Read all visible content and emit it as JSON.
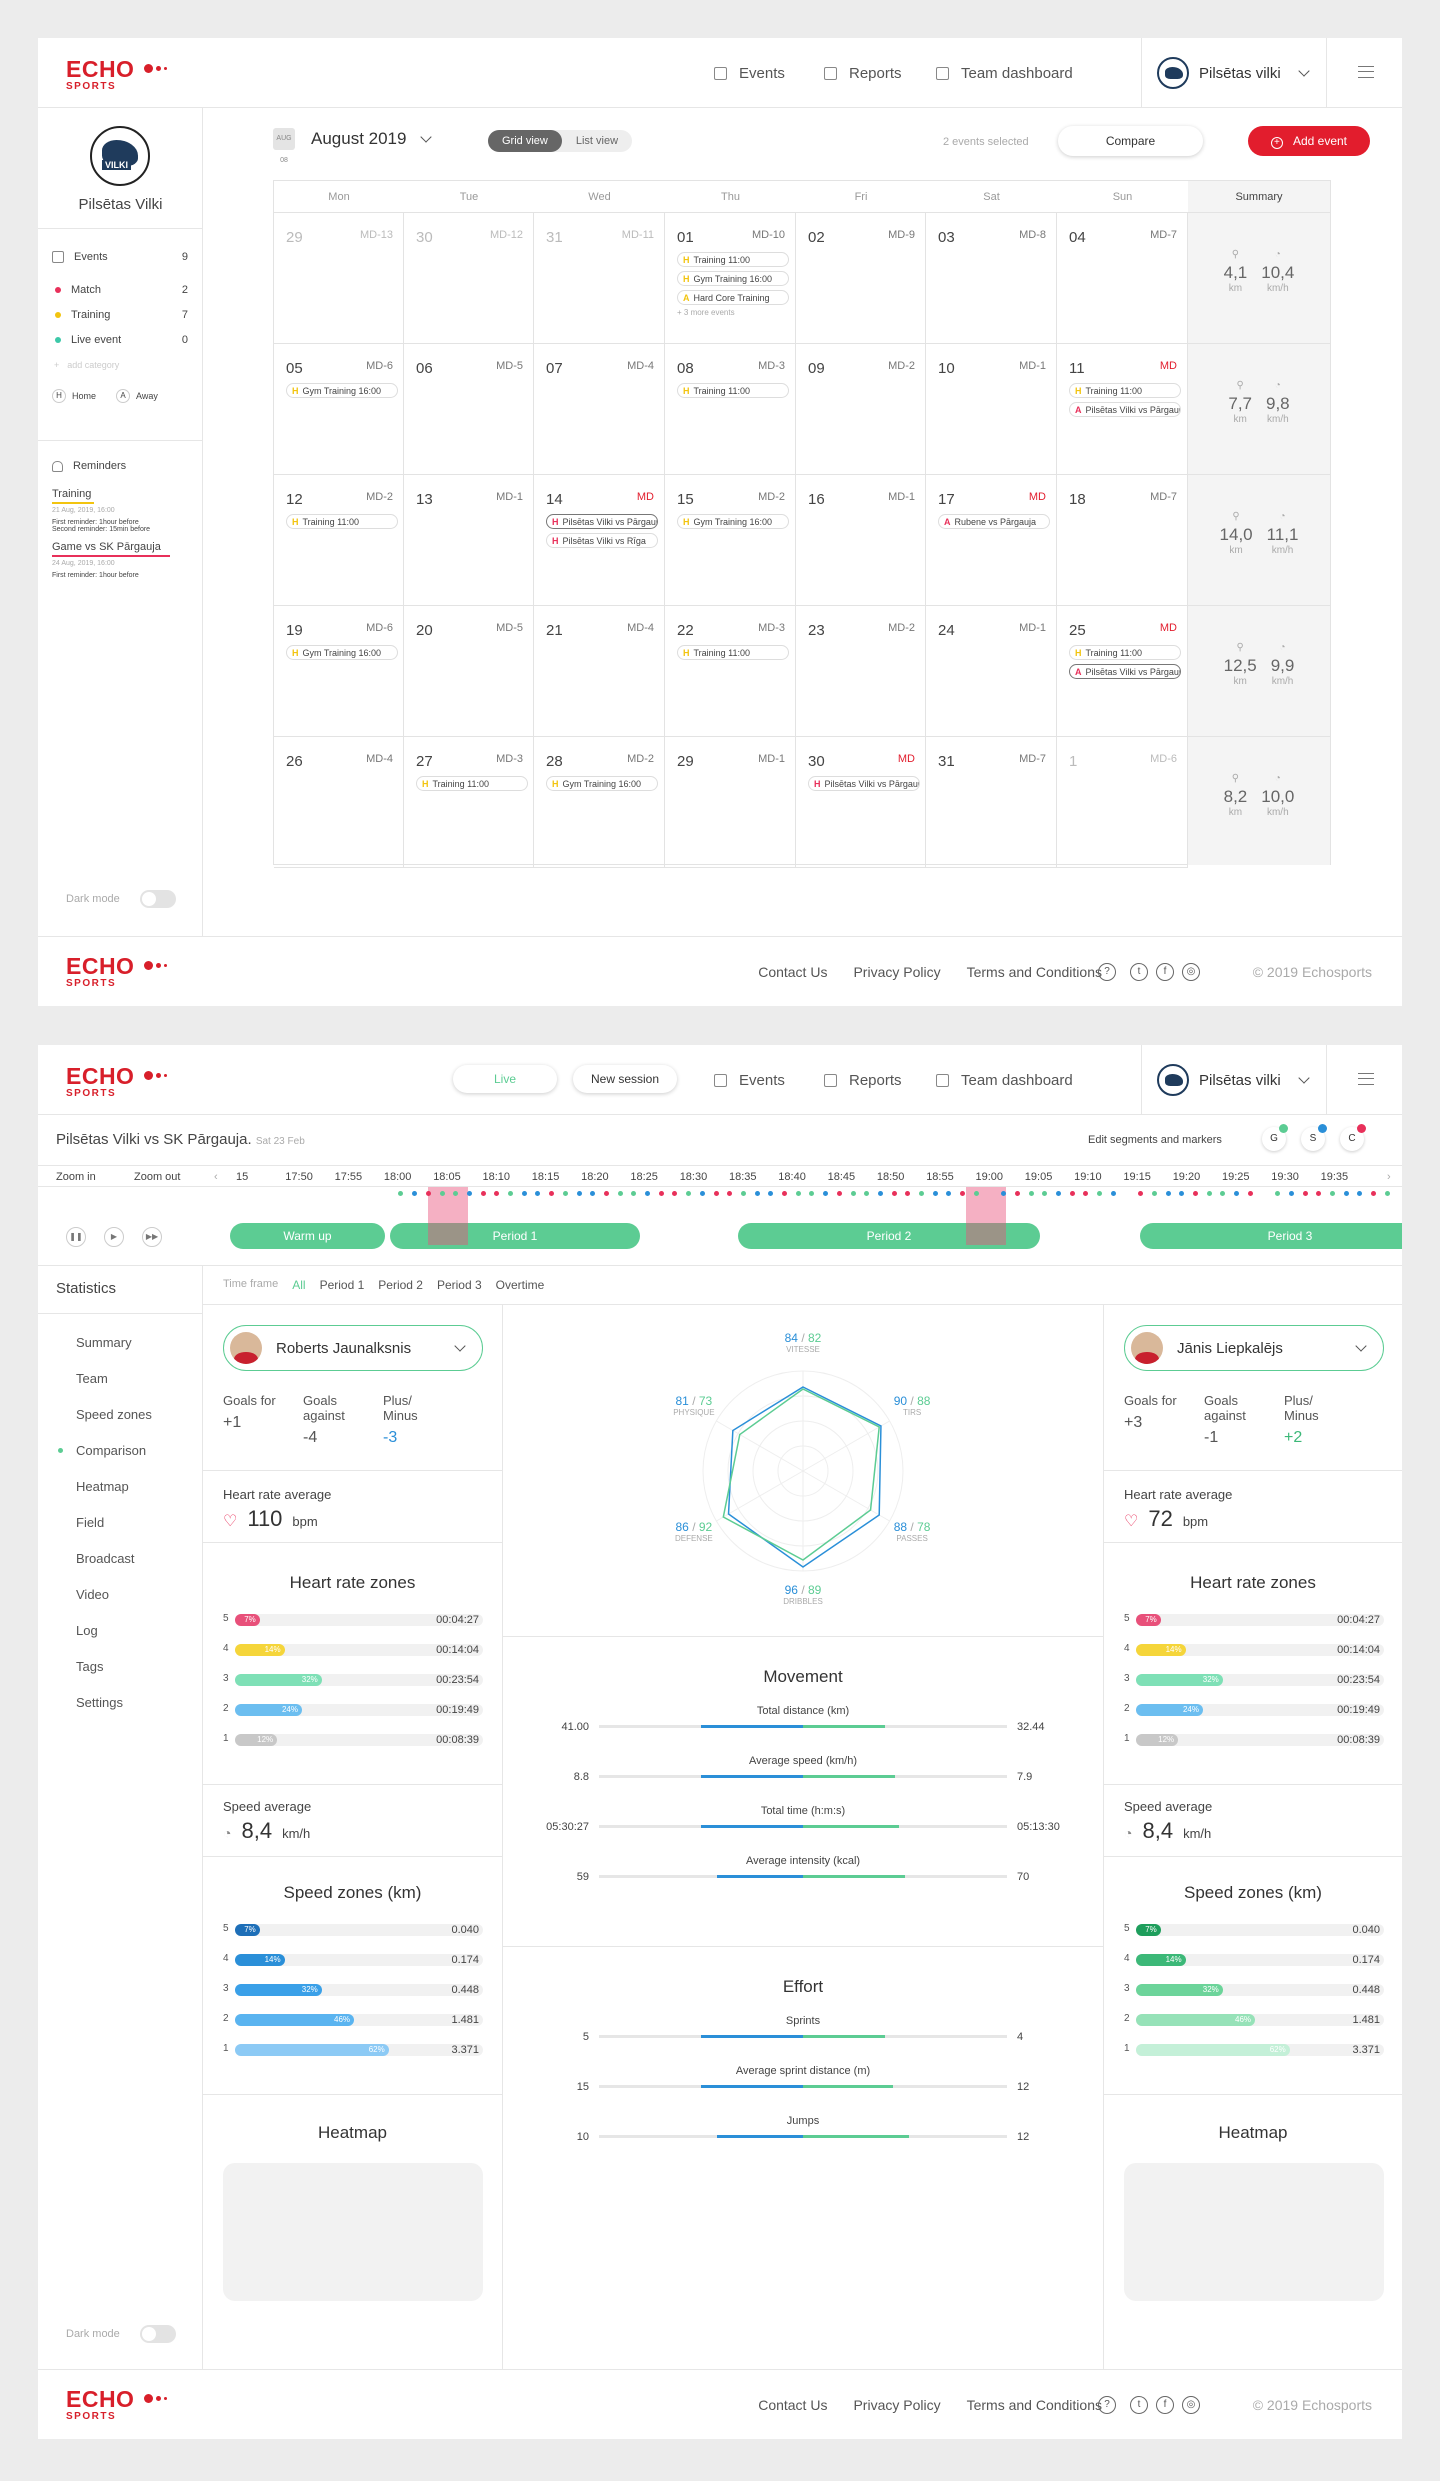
{
  "brand": {
    "logo_top": "ECHO",
    "logo_bottom": "SPORTS",
    "red": "#d81f2a",
    "green": "#5ccc93",
    "blue": "#2a8fd8"
  },
  "header": {
    "nav": [
      {
        "label": "Events",
        "icon": "calendar-icon"
      },
      {
        "label": "Reports",
        "icon": "report-icon"
      },
      {
        "label": "Team dashboard",
        "icon": "dashboard-icon"
      }
    ],
    "team": "Pilsētas vilki",
    "session_buttons": [
      "Live",
      "New session"
    ]
  },
  "footer": {
    "links": [
      "Contact Us",
      "Privacy Policy",
      "Terms and Conditions"
    ],
    "copyright": "© 2019 Echosports"
  },
  "dark_mode": "Dark mode",
  "sidebar": {
    "team": "Pilsētas Vilki",
    "events": {
      "label": "Events",
      "count": "9"
    },
    "categories": [
      {
        "label": "Match",
        "count": "2",
        "color": "#e8305a"
      },
      {
        "label": "Training",
        "count": "7",
        "color": "#f2c40f"
      },
      {
        "label": "Live event",
        "count": "0",
        "color": "#3cc8a8"
      }
    ],
    "add_category": "add category",
    "home": "Home",
    "away": "Away",
    "reminders_title": "Reminders",
    "reminders": [
      {
        "title": "Training",
        "date": "21 Aug, 2019, 16:00",
        "lines": [
          "First reminder: 1hour before",
          "Second reminder: 15min before"
        ],
        "color": "#f2c40f"
      },
      {
        "title": "Game vs SK Pārgauja",
        "date": "24 Aug, 2019, 16:00",
        "lines": [
          "First reminder: 1hour before"
        ],
        "color": "#e8305a"
      }
    ]
  },
  "calendar": {
    "month": "August 2019",
    "icon_text": "AUG 08",
    "views": [
      "Grid view",
      "List view"
    ],
    "selected_text": "2 events selected",
    "compare": "Compare",
    "add_event": "Add event",
    "days": [
      "Mon",
      "Tue",
      "Wed",
      "Thu",
      "Fri",
      "Sat",
      "Sun"
    ],
    "summary": "Summary",
    "weeks": [
      [
        {
          "d": "29",
          "md": "MD-13",
          "m": 1
        },
        {
          "d": "30",
          "md": "MD-12",
          "m": 1
        },
        {
          "d": "31",
          "md": "MD-11",
          "m": 1
        },
        {
          "d": "01",
          "md": "MD-10",
          "ev": [
            [
              "H",
              "Training 11:00",
              "#f2c40f"
            ],
            [
              "H",
              "Gym Training 16:00",
              "#f2c40f"
            ],
            [
              "A",
              "Hard Core Training",
              "#f2c40f"
            ]
          ],
          "more": "+ 3 more events"
        },
        {
          "d": "02",
          "md": "MD-9"
        },
        {
          "d": "03",
          "md": "MD-8"
        },
        {
          "d": "04",
          "md": "MD-7"
        }
      ],
      [
        {
          "d": "05",
          "md": "MD-6",
          "ev": [
            [
              "H",
              "Gym Training 16:00",
              "#f2c40f"
            ]
          ]
        },
        {
          "d": "06",
          "md": "MD-5"
        },
        {
          "d": "07",
          "md": "MD-4"
        },
        {
          "d": "08",
          "md": "MD-3",
          "ev": [
            [
              "H",
              "Training 11:00",
              "#f2c40f"
            ]
          ]
        },
        {
          "d": "09",
          "md": "MD-2"
        },
        {
          "d": "10",
          "md": "MD-1"
        },
        {
          "d": "11",
          "md": "MD",
          "r": 1,
          "ev": [
            [
              "H",
              "Training 11:00",
              "#f2c40f"
            ],
            [
              "A",
              "Pilsētas Vilki vs Pārgauja",
              "#e8305a"
            ]
          ]
        }
      ],
      [
        {
          "d": "12",
          "md": "MD-2",
          "ev": [
            [
              "H",
              "Training 11:00",
              "#f2c40f"
            ]
          ]
        },
        {
          "d": "13",
          "md": "MD-1"
        },
        {
          "d": "14",
          "md": "MD",
          "r": 1,
          "ev": [
            [
              "H",
              "Pilsētas Vilki vs Pārgauja",
              "#e8305a",
              "s"
            ],
            [
              "H",
              "Pilsētas Vilki vs Rīga",
              "#e8305a"
            ]
          ]
        },
        {
          "d": "15",
          "md": "MD-2",
          "ev": [
            [
              "H",
              "Gym Training 16:00",
              "#f2c40f"
            ]
          ]
        },
        {
          "d": "16",
          "md": "MD-1"
        },
        {
          "d": "17",
          "md": "MD",
          "r": 1,
          "ev": [
            [
              "A",
              "Rubene vs Pārgauja",
              "#e8305a"
            ]
          ]
        },
        {
          "d": "18",
          "md": "MD-7"
        }
      ],
      [
        {
          "d": "19",
          "md": "MD-6",
          "ev": [
            [
              "H",
              "Gym Training 16:00",
              "#f2c40f"
            ]
          ]
        },
        {
          "d": "20",
          "md": "MD-5"
        },
        {
          "d": "21",
          "md": "MD-4"
        },
        {
          "d": "22",
          "md": "MD-3",
          "ev": [
            [
              "H",
              "Training 11:00",
              "#f2c40f"
            ]
          ]
        },
        {
          "d": "23",
          "md": "MD-2"
        },
        {
          "d": "24",
          "md": "MD-1"
        },
        {
          "d": "25",
          "md": "MD",
          "r": 1,
          "ev": [
            [
              "H",
              "Training 11:00",
              "#f2c40f"
            ],
            [
              "A",
              "Pilsētas Vilki vs Pārgauja",
              "#e8305a",
              "s"
            ]
          ]
        }
      ],
      [
        {
          "d": "26",
          "md": "MD-4"
        },
        {
          "d": "27",
          "md": "MD-3",
          "ev": [
            [
              "H",
              "Training 11:00",
              "#f2c40f"
            ]
          ]
        },
        {
          "d": "28",
          "md": "MD-2",
          "ev": [
            [
              "H",
              "Gym Training 16:00",
              "#f2c40f"
            ]
          ]
        },
        {
          "d": "29",
          "md": "MD-1"
        },
        {
          "d": "30",
          "md": "MD",
          "r": 1,
          "ev": [
            [
              "H",
              "Pilsētas Vilki vs Pārgauja",
              "#e8305a"
            ]
          ]
        },
        {
          "d": "31",
          "md": "MD-7"
        },
        {
          "d": "1",
          "md": "MD-6",
          "m": 1
        }
      ]
    ],
    "summaries": [
      [
        "4,1",
        "10,4"
      ],
      [
        "7,7",
        "9,8"
      ],
      [
        "14,0",
        "11,1"
      ],
      [
        "12,5",
        "9,9"
      ],
      [
        "8,2",
        "10,0"
      ]
    ],
    "units": [
      "km",
      "km/h"
    ]
  },
  "match": {
    "title": "Pilsētas Vilki vs SK Pārgauja.",
    "date": "Sat 23 Feb",
    "edit": "Edit segments and markers",
    "markers": [
      "G",
      "S",
      "C"
    ],
    "zoom_in": "Zoom in",
    "zoom_out": "Zoom out",
    "times": [
      "15",
      "17:50",
      "17:55",
      "18:00",
      "18:05",
      "18:10",
      "18:15",
      "18:20",
      "18:25",
      "18:30",
      "18:35",
      "18:40",
      "18:45",
      "18:50",
      "18:55",
      "19:00",
      "19:05",
      "19:10",
      "19:15",
      "19:20",
      "19:25",
      "19:30",
      "19:35"
    ],
    "periods": [
      "Warm up",
      "Period 1",
      "Period 2",
      "Period 3"
    ]
  },
  "stats": {
    "title": "Statistics",
    "menu": [
      "Summary",
      "Team",
      "Speed zones",
      "Comparison",
      "Heatmap",
      "Field",
      "Broadcast",
      "Video",
      "Log",
      "Tags",
      "Settings"
    ],
    "active": "Comparison",
    "time_frame": "Time frame",
    "frames": [
      "All",
      "Period 1",
      "Period 2",
      "Period 3",
      "Overtime"
    ],
    "players": [
      {
        "name": "Roberts Jaunalksnis",
        "goals_for": "+1",
        "goals_against": "-4",
        "plus_minus": "-3",
        "hr": "110",
        "speed": "8,4",
        "hr_zones": [
          [
            "5",
            "7%",
            "00:04:27",
            0.1,
            "#e8507a"
          ],
          [
            "4",
            "14%",
            "00:14:04",
            0.2,
            "#f5d53a"
          ],
          [
            "3",
            "32%",
            "00:23:54",
            0.35,
            "#7ee0b6"
          ],
          [
            "2",
            "24%",
            "00:19:49",
            0.27,
            "#6cbef0"
          ],
          [
            "1",
            "12%",
            "00:08:39",
            0.17,
            "#c8c8c8"
          ]
        ],
        "spd_zones": [
          [
            "5",
            "7%",
            "0.040",
            0.1,
            "#1e6fb8"
          ],
          [
            "4",
            "14%",
            "0.174",
            0.2,
            "#2a8fd8"
          ],
          [
            "3",
            "32%",
            "0.448",
            0.35,
            "#3aa0e8"
          ],
          [
            "2",
            "46%",
            "1.481",
            0.48,
            "#5ab4f0"
          ],
          [
            "1",
            "62%",
            "3.371",
            0.62,
            "#8ccaf5"
          ]
        ]
      },
      {
        "name": "Jānis Liepkalējs",
        "goals_for": "+3",
        "goals_against": "-1",
        "plus_minus": "+2",
        "hr": "72",
        "speed": "8,4",
        "hr_zones": [
          [
            "5",
            "7%",
            "00:04:27",
            0.1,
            "#e8507a"
          ],
          [
            "4",
            "14%",
            "00:14:04",
            0.2,
            "#f5d53a"
          ],
          [
            "3",
            "32%",
            "00:23:54",
            0.35,
            "#7ee0b6"
          ],
          [
            "2",
            "24%",
            "00:19:49",
            0.27,
            "#6cbef0"
          ],
          [
            "1",
            "12%",
            "00:08:39",
            0.17,
            "#c8c8c8"
          ]
        ],
        "spd_zones": [
          [
            "5",
            "7%",
            "0.040",
            0.1,
            "#1e9e5c"
          ],
          [
            "4",
            "14%",
            "0.174",
            0.2,
            "#3cb878"
          ],
          [
            "3",
            "32%",
            "0.448",
            0.35,
            "#6cd49a"
          ],
          [
            "2",
            "46%",
            "1.481",
            0.48,
            "#96e2b8"
          ],
          [
            "1",
            "62%",
            "3.371",
            0.62,
            "#c4f0d8"
          ]
        ]
      }
    ],
    "labels": {
      "goals_for": "Goals for",
      "goals_against": "Goals against",
      "plus_minus": "Plus/ Minus",
      "hr_avg": "Heart rate average",
      "bpm": "bpm",
      "hr_zones": "Heart rate zones",
      "speed_avg": "Speed average",
      "kmh": "km/h",
      "speed_zones": "Speed zones (km)",
      "heatmap": "Heatmap",
      "movement": "Movement",
      "effort": "Effort"
    },
    "radar": [
      {
        "name": "VITESSE",
        "a": "84",
        "b": "82"
      },
      {
        "name": "TIRS",
        "a": "90",
        "b": "88"
      },
      {
        "name": "PASSES",
        "a": "88",
        "b": "78"
      },
      {
        "name": "DRIBBLES",
        "a": "96",
        "b": "89"
      },
      {
        "name": "DEFENSE",
        "a": "86",
        "b": "92"
      },
      {
        "name": "PHYSIQUE",
        "a": "81",
        "b": "73"
      }
    ],
    "movement": [
      {
        "label": "Total distance (km)",
        "l": "41.00",
        "r": "32.44",
        "lw": 0.5,
        "rw": 0.4
      },
      {
        "label": "Average speed (km/h)",
        "l": "8.8",
        "r": "7.9",
        "lw": 0.5,
        "rw": 0.45
      },
      {
        "label": "Total time (h:m:s)",
        "l": "05:30:27",
        "r": "05:13:30",
        "lw": 0.5,
        "rw": 0.47
      },
      {
        "label": "Average intensity (kcal)",
        "l": "59",
        "r": "70",
        "lw": 0.42,
        "rw": 0.5
      }
    ],
    "effort": [
      {
        "label": "Sprints",
        "l": "5",
        "r": "4",
        "lw": 0.5,
        "rw": 0.4
      },
      {
        "label": "Average sprint distance (m)",
        "l": "15",
        "r": "12",
        "lw": 0.5,
        "rw": 0.44
      },
      {
        "label": "Jumps",
        "l": "10",
        "r": "12",
        "lw": 0.42,
        "rw": 0.52
      }
    ]
  }
}
